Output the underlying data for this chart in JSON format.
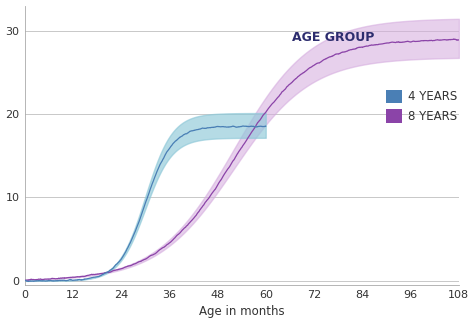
{
  "xlabel": "Age in months",
  "xlim": [
    0,
    108
  ],
  "ylim": [
    -0.5,
    33
  ],
  "xticks": [
    0,
    12,
    24,
    36,
    48,
    60,
    72,
    84,
    96,
    108
  ],
  "yticks": [
    0,
    10,
    20,
    30
  ],
  "color_4yr": "#4a7fb5",
  "color_8yr": "#8b44a8",
  "fill_4yr": "#8ec8d8",
  "fill_8yr": "#d4aade",
  "legend_title": "AGE GROUP",
  "legend_title_color": "#2d2d6e",
  "label_4yr": "4 YEARS",
  "label_8yr": "8 YEARS",
  "bg_color": "#ffffff",
  "grid_color": "#c8c8c8",
  "patch_4yr": "#4a7fb5",
  "patch_8yr": "#8b44a8"
}
